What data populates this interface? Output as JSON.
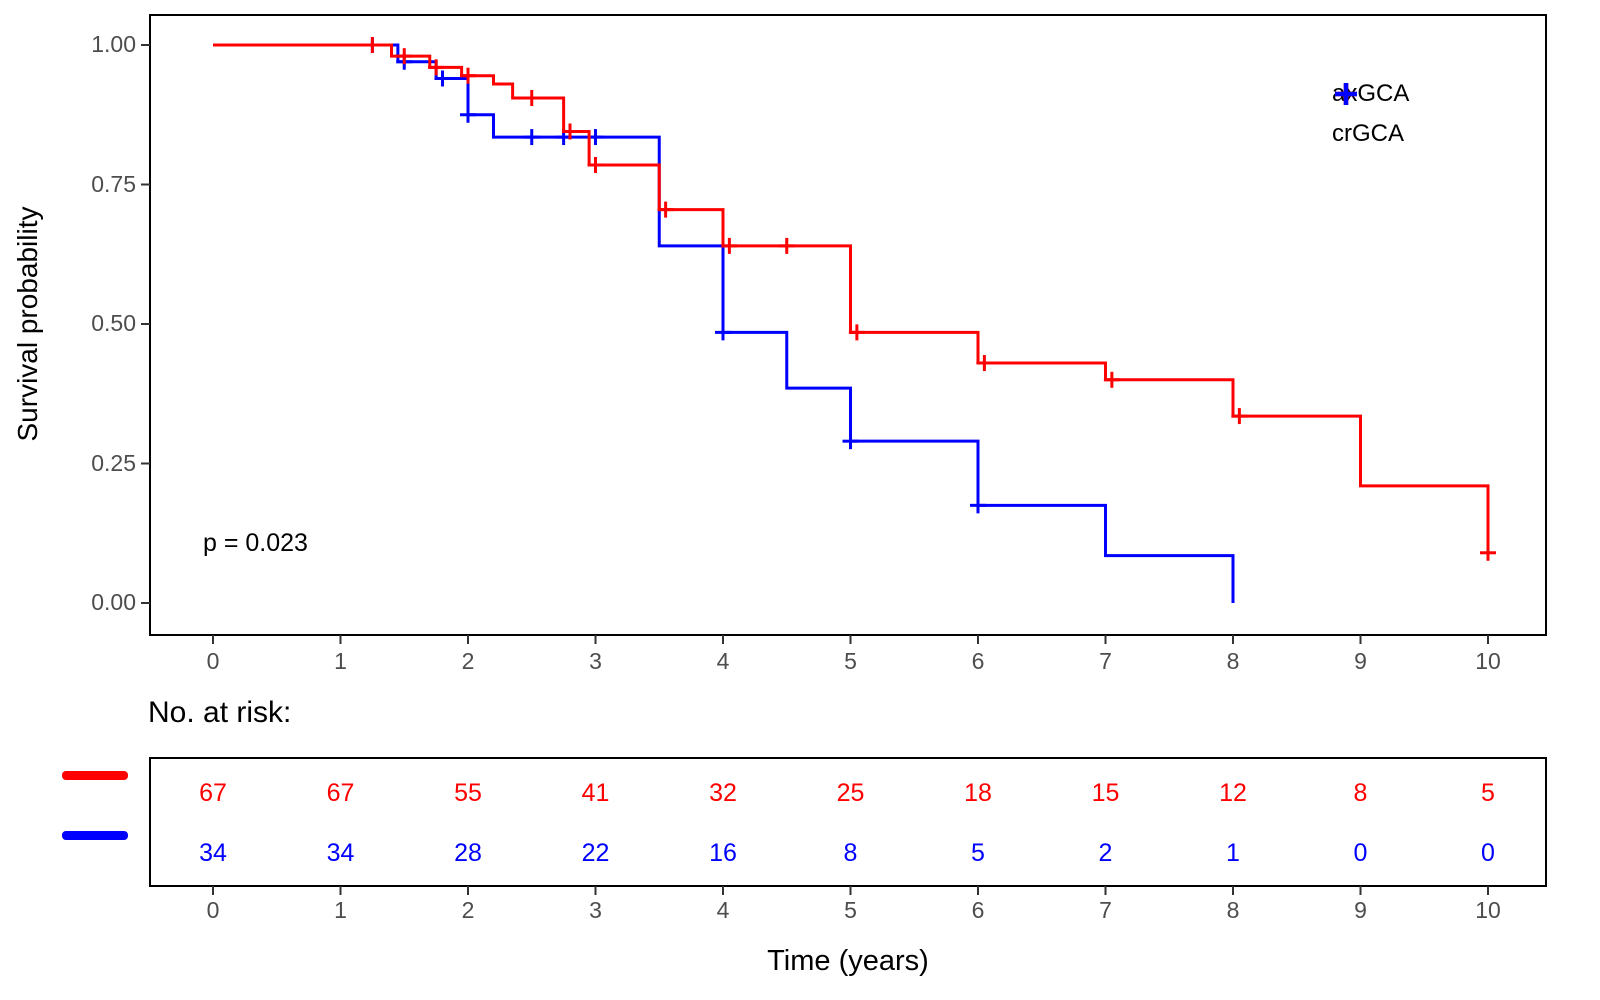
{
  "chart_data": {
    "type": "line",
    "subtype": "kaplan-meier-step",
    "title": "",
    "xlabel": "Time (years)",
    "ylabel": "Survival probability",
    "xlim": [
      0,
      10
    ],
    "ylim": [
      0,
      1
    ],
    "x_ticks": [
      "0",
      "1",
      "2",
      "3",
      "4",
      "5",
      "6",
      "7",
      "8",
      "9",
      "10"
    ],
    "x_tick_values": [
      0,
      1,
      2,
      3,
      4,
      5,
      6,
      7,
      8,
      9,
      10
    ],
    "y_ticks": [
      "1.00",
      "0.75",
      "0.50",
      "0.25",
      "0.00"
    ],
    "y_tick_values": [
      1.0,
      0.75,
      0.5,
      0.25,
      0.0
    ],
    "grid": false,
    "legend_position": "inside-top-right",
    "p_value_label": "p = 0.023",
    "legend": [
      {
        "name": "axGCA",
        "color": "#FF0000"
      },
      {
        "name": "crGCA",
        "color": "#0000FF"
      }
    ],
    "series": [
      {
        "name": "crGCA",
        "color": "#0000FF",
        "start": [
          0,
          1.0
        ],
        "drops": [
          [
            1.45,
            0.97
          ],
          [
            1.75,
            0.94
          ],
          [
            2.0,
            0.875
          ],
          [
            2.2,
            0.835
          ],
          [
            3.5,
            0.64
          ],
          [
            4.0,
            0.485
          ],
          [
            4.5,
            0.385
          ],
          [
            5.0,
            0.29
          ],
          [
            6.0,
            0.175
          ],
          [
            7.0,
            0.085
          ],
          [
            8.0,
            0.0
          ]
        ],
        "censors": [
          [
            1.25,
            1.0
          ],
          [
            1.5,
            0.97
          ],
          [
            1.8,
            0.94
          ],
          [
            2.0,
            0.875
          ],
          [
            2.5,
            0.835
          ],
          [
            2.75,
            0.835
          ],
          [
            3.0,
            0.835
          ],
          [
            4.0,
            0.485
          ],
          [
            5.0,
            0.29
          ],
          [
            6.0,
            0.175
          ]
        ]
      },
      {
        "name": "axGCA",
        "color": "#FF0000",
        "start": [
          0,
          1.0
        ],
        "drops": [
          [
            1.4,
            0.98
          ],
          [
            1.7,
            0.96
          ],
          [
            1.95,
            0.945
          ],
          [
            2.2,
            0.93
          ],
          [
            2.35,
            0.905
          ],
          [
            2.75,
            0.845
          ],
          [
            2.95,
            0.785
          ],
          [
            3.5,
            0.705
          ],
          [
            4.0,
            0.64
          ],
          [
            5.0,
            0.485
          ],
          [
            6.0,
            0.43
          ],
          [
            7.0,
            0.4
          ],
          [
            8.0,
            0.335
          ],
          [
            9.0,
            0.21
          ],
          [
            10.0,
            0.09
          ]
        ],
        "censors": [
          [
            1.25,
            1.0
          ],
          [
            1.5,
            0.98
          ],
          [
            1.75,
            0.96
          ],
          [
            2.0,
            0.945
          ],
          [
            2.5,
            0.905
          ],
          [
            2.8,
            0.845
          ],
          [
            3.0,
            0.785
          ],
          [
            3.55,
            0.705
          ],
          [
            4.05,
            0.64
          ],
          [
            4.5,
            0.64
          ],
          [
            5.05,
            0.485
          ],
          [
            6.05,
            0.43
          ],
          [
            7.05,
            0.4
          ],
          [
            8.05,
            0.335
          ],
          [
            10.0,
            0.09
          ]
        ]
      }
    ],
    "risk_table": {
      "title": "No. at risk:",
      "times": [
        "0",
        "1",
        "2",
        "3",
        "4",
        "5",
        "6",
        "7",
        "8",
        "9",
        "10"
      ],
      "time_values": [
        0,
        1,
        2,
        3,
        4,
        5,
        6,
        7,
        8,
        9,
        10
      ],
      "rows": [
        {
          "name": "axGCA",
          "color": "#FF0000",
          "counts": [
            "67",
            "67",
            "55",
            "41",
            "32",
            "25",
            "18",
            "15",
            "12",
            "8",
            "5"
          ]
        },
        {
          "name": "crGCA",
          "color": "#0000FF",
          "counts": [
            "34",
            "34",
            "28",
            "22",
            "16",
            "8",
            "5",
            "2",
            "1",
            "0",
            "0"
          ]
        }
      ]
    }
  }
}
